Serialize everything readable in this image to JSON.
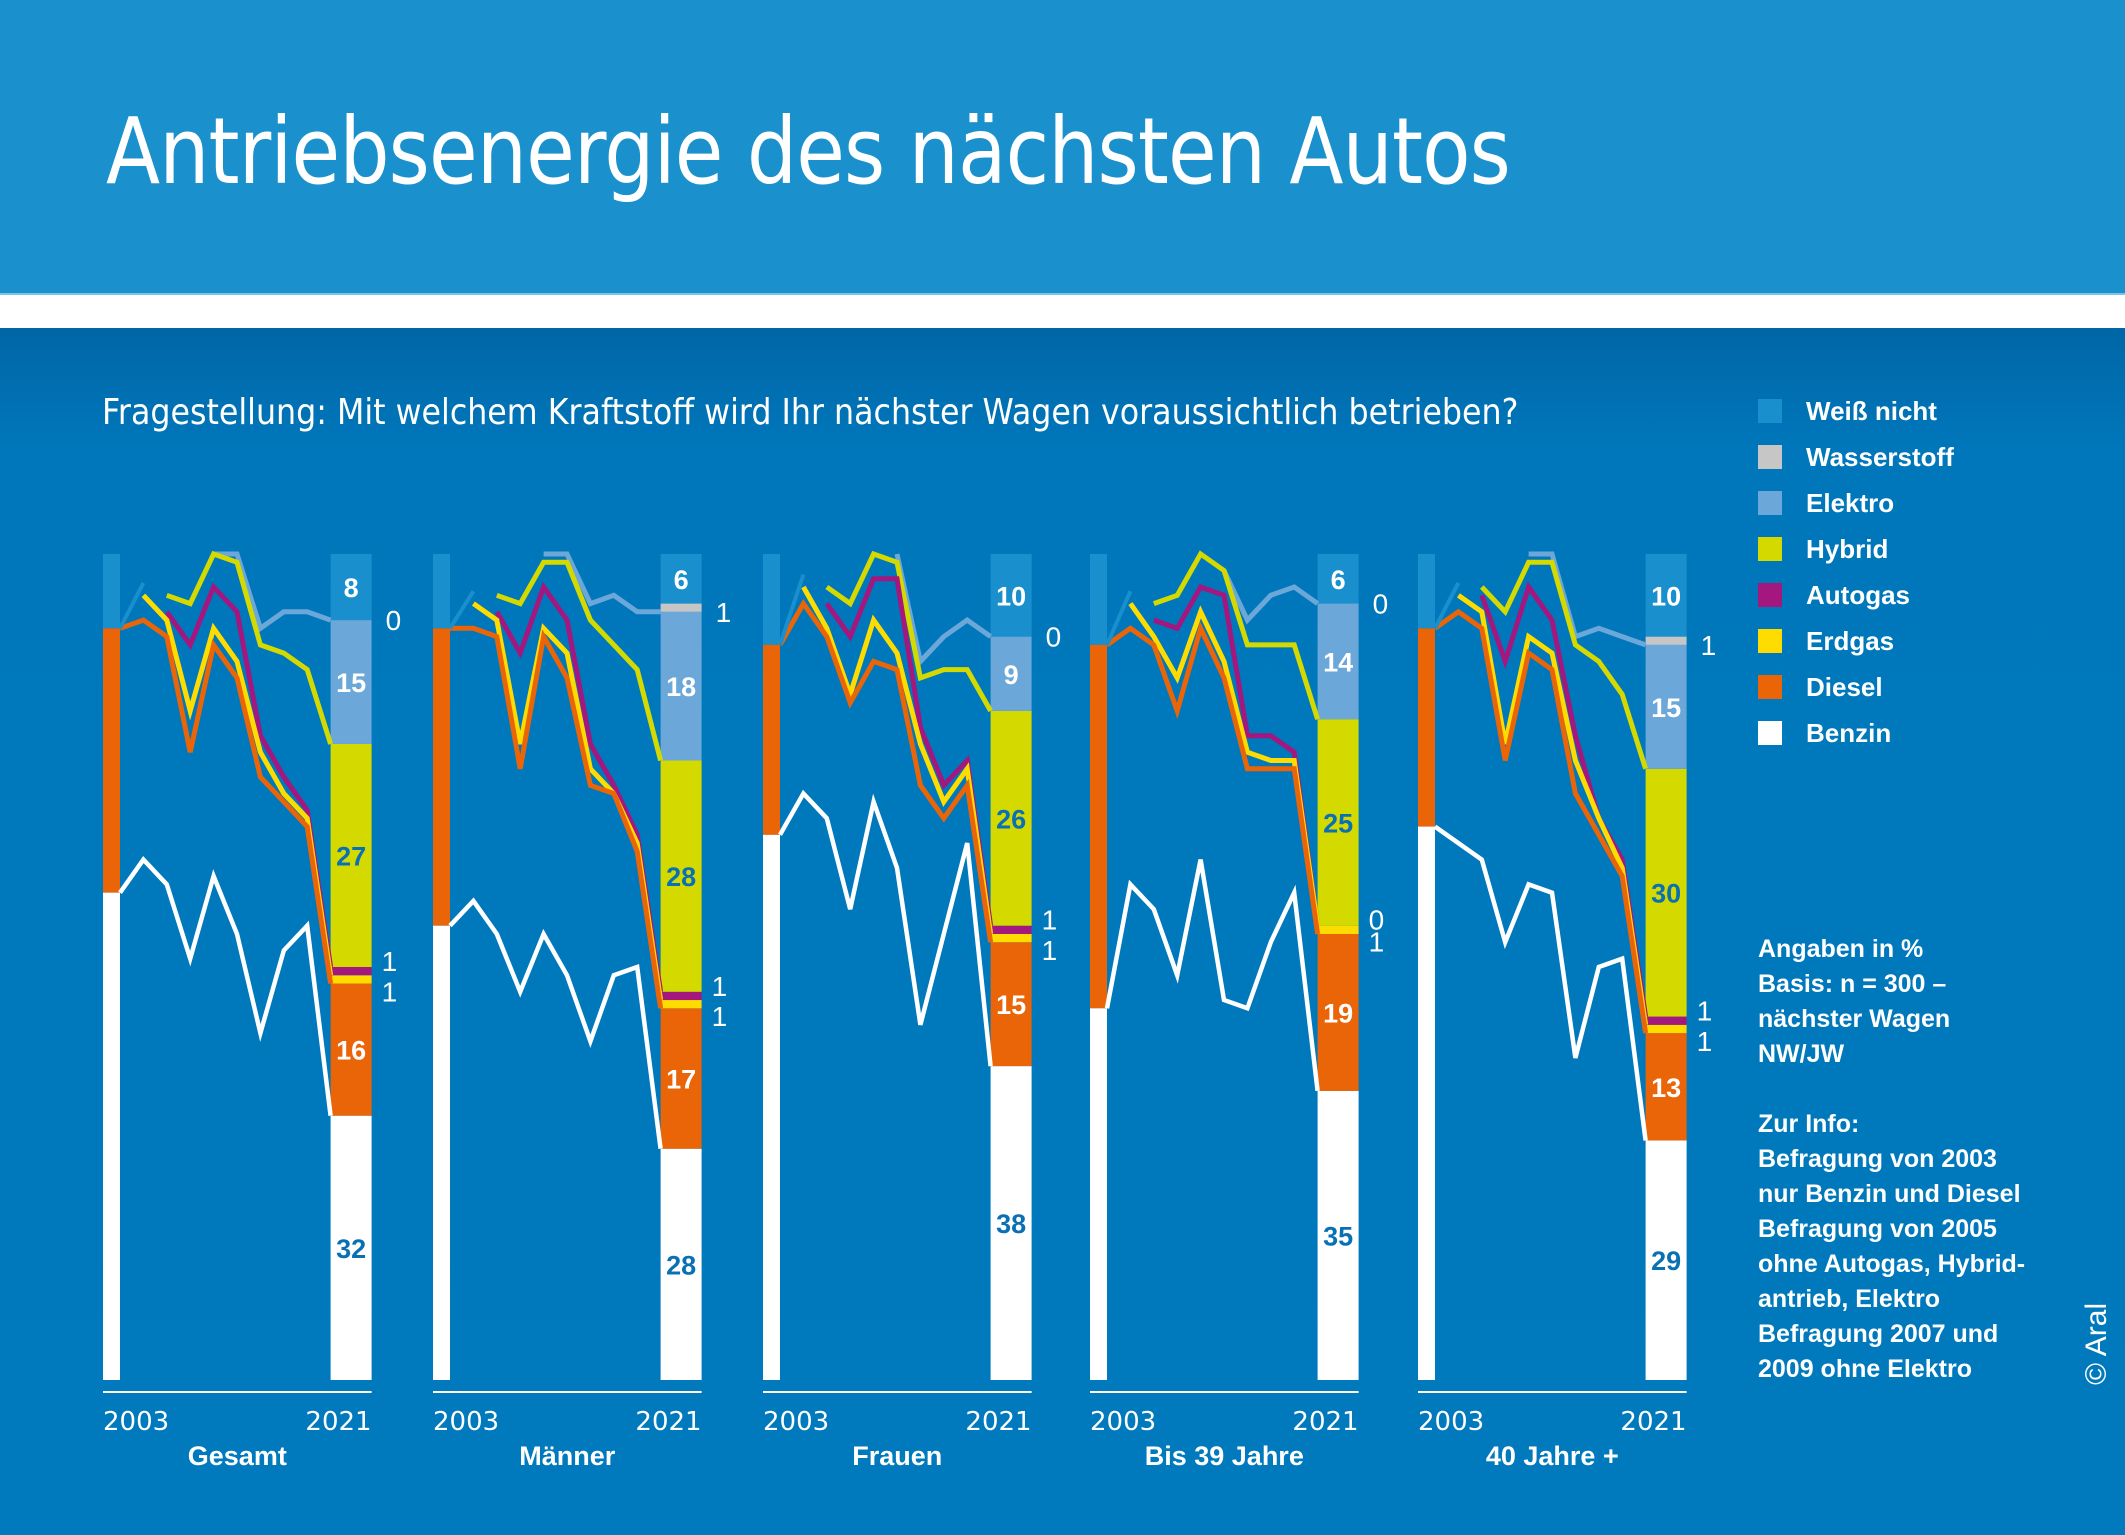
{
  "header": {
    "title": "Antriebsenergie des nächsten Autos"
  },
  "question": "Fragestellung: Mit welchem Kraftstoff wird Ihr nächster Wagen voraussichtlich betrieben?",
  "legend": [
    {
      "key": "weiss_nicht",
      "label": "Weiß nicht",
      "color": "#1a8fcd"
    },
    {
      "key": "wasserstoff",
      "label": "Wasserstoff",
      "color": "#c6c6c6"
    },
    {
      "key": "elektro",
      "label": "Elektro",
      "color": "#6ba7d8"
    },
    {
      "key": "hybrid",
      "label": "Hybrid",
      "color": "#d4d900"
    },
    {
      "key": "autogas",
      "label": "Autogas",
      "color": "#a3177f"
    },
    {
      "key": "erdgas",
      "label": "Erdgas",
      "color": "#ffdc00"
    },
    {
      "key": "diesel",
      "label": "Diesel",
      "color": "#ea6508"
    },
    {
      "key": "benzin",
      "label": "Benzin",
      "color": "#ffffff"
    }
  ],
  "notes": {
    "unit_lines": [
      "Angaben in %",
      "Basis: n = 300 –",
      "nächster Wagen",
      "NW/JW"
    ],
    "info_lines": [
      "Zur Info:",
      "Befragung von 2003",
      "nur Benzin und Diesel",
      "Befragung von 2005",
      "ohne Autogas, Hybrid-",
      "antrieb, Elektro",
      "Befragung 2007 und",
      "2009 ohne Elektro"
    ]
  },
  "copyright": "© Aral",
  "chart_data": {
    "type": "area",
    "title": "Antriebsenergie des nächsten Autos",
    "subtitle": "Fragestellung: Mit welchem Kraftstoff wird Ihr nächster Wagen voraussichtlich betrieben?",
    "unit": "%",
    "ylim": [
      0,
      100
    ],
    "grid": false,
    "legend_position": "right",
    "x": [
      2003,
      2005,
      2007,
      2009,
      2011,
      2013,
      2015,
      2017,
      2019,
      2021
    ],
    "x_tick_labels": [
      "2003",
      "2021"
    ],
    "stack_order": [
      "benzin",
      "diesel",
      "erdgas",
      "autogas",
      "hybrid",
      "elektro",
      "wasserstoff",
      "weiss_nicht"
    ],
    "note": "Lines show cumulative stacked share (top edge of each fuel band); 2021 bar shows labeled values.",
    "panels": [
      {
        "name": "Gesamt",
        "cumulative_lines": {
          "benzin": [
            59,
            63,
            60,
            51,
            61,
            54,
            42,
            52,
            55,
            32
          ],
          "diesel": [
            91,
            92,
            90,
            76,
            89,
            85,
            73,
            70,
            67,
            48
          ],
          "erdgas": [
            null,
            95,
            92,
            81,
            91,
            87,
            76,
            71,
            68,
            49
          ],
          "autogas": [
            null,
            null,
            93,
            89,
            96,
            93,
            78,
            73,
            69,
            50
          ],
          "hybrid": [
            null,
            null,
            95,
            94,
            100,
            99,
            89,
            88,
            86,
            77
          ],
          "elektro": [
            null,
            null,
            null,
            null,
            100,
            100,
            91,
            93,
            93,
            92
          ]
        },
        "values_2021": {
          "benzin": 32,
          "diesel": 16,
          "erdgas": 1,
          "autogas": 1,
          "hybrid": 27,
          "elektro": 15,
          "wasserstoff": 0,
          "weiss_nicht": 8
        }
      },
      {
        "name": "Männer",
        "cumulative_lines": {
          "benzin": [
            55,
            58,
            54,
            47,
            54,
            49,
            41,
            49,
            50,
            28
          ],
          "diesel": [
            91,
            91,
            90,
            74,
            90,
            85,
            72,
            71,
            64,
            45
          ],
          "erdgas": [
            null,
            94,
            92,
            77,
            91,
            88,
            74,
            71,
            65,
            46
          ],
          "autogas": [
            null,
            null,
            93,
            88,
            96,
            92,
            77,
            72,
            66,
            47
          ],
          "hybrid": [
            null,
            null,
            95,
            94,
            99,
            99,
            92,
            89,
            86,
            75
          ],
          "elektro": [
            null,
            null,
            null,
            null,
            100,
            100,
            94,
            95,
            93,
            93
          ]
        },
        "values_2021": {
          "benzin": 28,
          "diesel": 17,
          "erdgas": 1,
          "autogas": 1,
          "hybrid": 28,
          "elektro": 18,
          "wasserstoff": 1,
          "weiss_nicht": 6
        }
      },
      {
        "name": "Frauen",
        "cumulative_lines": {
          "benzin": [
            66,
            71,
            68,
            57,
            70,
            62,
            43,
            54,
            65,
            38
          ],
          "diesel": [
            89,
            94,
            90,
            82,
            87,
            86,
            72,
            68,
            72,
            53
          ],
          "erdgas": [
            null,
            96,
            91,
            83,
            92,
            88,
            77,
            70,
            74,
            54
          ],
          "autogas": [
            null,
            null,
            94,
            90,
            97,
            97,
            79,
            72,
            75,
            55
          ],
          "hybrid": [
            null,
            null,
            96,
            94,
            100,
            99,
            85,
            86,
            86,
            81
          ],
          "elektro": [
            null,
            null,
            null,
            null,
            null,
            100,
            87,
            90,
            92,
            90
          ]
        },
        "values_2021": {
          "benzin": 38,
          "diesel": 15,
          "erdgas": 1,
          "autogas": 1,
          "hybrid": 26,
          "elektro": 9,
          "wasserstoff": 0,
          "weiss_nicht": 10
        }
      },
      {
        "name": "Bis 39 Jahre",
        "cumulative_lines": {
          "benzin": [
            45,
            60,
            57,
            49,
            63,
            46,
            45,
            53,
            59,
            35
          ],
          "diesel": [
            89,
            91,
            89,
            81,
            91,
            85,
            74,
            74,
            74,
            54
          ],
          "erdgas": [
            null,
            94,
            90,
            85,
            93,
            87,
            76,
            75,
            75,
            55
          ],
          "autogas": [
            null,
            null,
            92,
            91,
            96,
            95,
            78,
            78,
            76,
            55
          ],
          "hybrid": [
            null,
            null,
            94,
            95,
            100,
            98,
            89,
            89,
            89,
            80
          ],
          "elektro": [
            null,
            null,
            null,
            null,
            null,
            98,
            92,
            95,
            96,
            94
          ]
        },
        "values_2021": {
          "benzin": 35,
          "diesel": 19,
          "erdgas": 1,
          "autogas": 0,
          "hybrid": 25,
          "elektro": 14,
          "wasserstoff": 0,
          "weiss_nicht": 6
        }
      },
      {
        "name": "40 Jahre +",
        "cumulative_lines": {
          "benzin": [
            67,
            65,
            63,
            53,
            60,
            59,
            39,
            50,
            51,
            29
          ],
          "diesel": [
            91,
            93,
            91,
            75,
            88,
            86,
            71,
            66,
            61,
            42
          ],
          "erdgas": [
            null,
            95,
            93,
            77,
            90,
            88,
            75,
            68,
            62,
            43
          ],
          "autogas": [
            null,
            null,
            95,
            87,
            96,
            92,
            78,
            68,
            63,
            44
          ],
          "hybrid": [
            null,
            null,
            96,
            93,
            99,
            99,
            89,
            87,
            83,
            74
          ],
          "elektro": [
            null,
            null,
            null,
            null,
            100,
            100,
            90,
            91,
            90,
            89
          ]
        },
        "values_2021": {
          "benzin": 29,
          "diesel": 13,
          "erdgas": 1,
          "autogas": 1,
          "hybrid": 30,
          "elektro": 15,
          "wasserstoff": 1,
          "weiss_nicht": 10
        }
      }
    ]
  }
}
